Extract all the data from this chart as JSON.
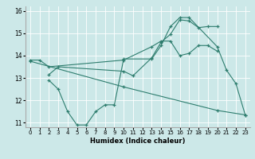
{
  "xlabel": "Humidex (Indice chaleur)",
  "ylabel": "",
  "xlim": [
    -0.5,
    23.5
  ],
  "ylim": [
    10.8,
    16.2
  ],
  "yticks": [
    11,
    12,
    13,
    14,
    15,
    16
  ],
  "xticks": [
    0,
    1,
    2,
    3,
    4,
    5,
    6,
    7,
    8,
    9,
    10,
    11,
    12,
    13,
    14,
    15,
    16,
    17,
    18,
    19,
    20,
    21,
    22,
    23
  ],
  "bg_color": "#cce8e8",
  "line_color": "#2e7d6e",
  "series": [
    {
      "x": [
        0,
        1,
        2,
        10,
        13,
        14,
        15,
        16,
        17,
        18,
        19,
        20
      ],
      "y": [
        13.8,
        13.8,
        13.5,
        13.8,
        14.4,
        14.65,
        14.65,
        14.0,
        14.1,
        14.45,
        14.45,
        14.2
      ]
    },
    {
      "x": [
        2,
        3,
        10,
        11,
        13,
        14,
        15,
        16,
        17,
        18,
        19,
        20
      ],
      "y": [
        13.15,
        13.5,
        13.3,
        13.1,
        13.9,
        14.6,
        14.95,
        15.6,
        15.55,
        15.25,
        15.3,
        15.3
      ]
    },
    {
      "x": [
        2,
        3,
        4,
        5,
        6,
        7,
        8,
        9,
        10,
        13,
        14,
        15,
        16,
        17,
        20,
        21,
        22,
        23
      ],
      "y": [
        12.9,
        12.5,
        11.5,
        10.9,
        10.9,
        11.5,
        11.8,
        11.8,
        13.85,
        13.85,
        14.45,
        15.3,
        15.7,
        15.7,
        14.4,
        13.35,
        12.75,
        11.35
      ]
    },
    {
      "x": [
        0,
        10,
        20,
        23
      ],
      "y": [
        13.75,
        12.6,
        11.55,
        11.35
      ]
    }
  ]
}
